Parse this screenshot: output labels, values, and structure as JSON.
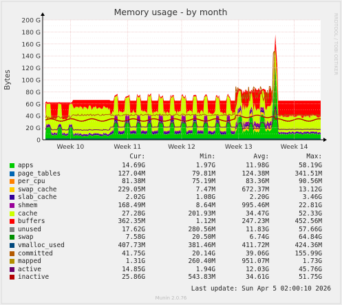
{
  "chart_data": {
    "type": "area",
    "title": "Memory usage - by month",
    "ylabel": "Bytes",
    "xlabel": "",
    "ylim": [
      0,
      200
    ],
    "y_unit": "G",
    "yticks": [
      "0",
      "20 G",
      "40 G",
      "60 G",
      "80 G",
      "100 G",
      "120 G",
      "140 G",
      "160 G",
      "180 G",
      "200 G"
    ],
    "xticks": [
      "Week 10",
      "Week 11",
      "Week 12",
      "Week 13",
      "Week 14"
    ],
    "grid": true,
    "watermark": "RRDTOOL / TOBI OETIKER",
    "legend_headers": [
      "Cur:",
      "Min:",
      "Avg:",
      "Max:"
    ],
    "series": [
      {
        "name": "apps",
        "color": "#00cc00",
        "cur": "14.69G",
        "min": "1.97G",
        "avg": "11.98G",
        "max": "58.19G"
      },
      {
        "name": "page_tables",
        "color": "#0066b3",
        "cur": "127.04M",
        "min": "79.81M",
        "avg": "124.38M",
        "max": "341.51M"
      },
      {
        "name": "per_cpu",
        "color": "#ff8000",
        "cur": "81.38M",
        "min": "75.19M",
        "avg": "83.36M",
        "max": "90.56M"
      },
      {
        "name": "swap_cache",
        "color": "#ffcc00",
        "cur": "229.05M",
        "min": "7.47M",
        "avg": "672.37M",
        "max": "13.12G"
      },
      {
        "name": "slab_cache",
        "color": "#330099",
        "cur": "2.02G",
        "min": "1.08G",
        "avg": "2.20G",
        "max": "3.46G"
      },
      {
        "name": "shmem",
        "color": "#990099",
        "cur": "168.49M",
        "min": "8.64M",
        "avg": "995.46M",
        "max": "22.81G"
      },
      {
        "name": "cache",
        "color": "#ccff00",
        "cur": "27.28G",
        "min": "201.93M",
        "avg": "34.47G",
        "max": "52.33G"
      },
      {
        "name": "buffers",
        "color": "#ff0000",
        "cur": "362.35M",
        "min": "1.12M",
        "avg": "247.23M",
        "max": "452.56M"
      },
      {
        "name": "unused",
        "color": "#808080",
        "cur": "17.62G",
        "min": "280.56M",
        "avg": "11.83G",
        "max": "57.66G"
      },
      {
        "name": "swap",
        "color": "#008f00",
        "cur": "7.58G",
        "min": "20.50M",
        "avg": "6.74G",
        "max": "64.84G"
      },
      {
        "name": "vmalloc_used",
        "color": "#00487d",
        "cur": "407.73M",
        "min": "381.46M",
        "avg": "411.72M",
        "max": "424.36M"
      },
      {
        "name": "committed",
        "color": "#b35a00",
        "cur": "41.75G",
        "min": "20.14G",
        "avg": "39.06G",
        "max": "155.99G"
      },
      {
        "name": "mapped",
        "color": "#b38f00",
        "cur": "1.31G",
        "min": "260.40M",
        "avg": "951.07M",
        "max": "1.73G"
      },
      {
        "name": "active",
        "color": "#6b006b",
        "cur": "14.85G",
        "min": "1.94G",
        "avg": "12.03G",
        "max": "45.76G"
      },
      {
        "name": "inactive",
        "color": "#8f6b00",
        "cur": "25.86G",
        "min": "543.83M",
        "avg": "34.61G",
        "max": "51.75G"
      }
    ],
    "legend_swatches": [
      "#00cc00",
      "#0066b3",
      "#ff8000",
      "#ffcc00",
      "#330099",
      "#990099",
      "#ccff00",
      "#ff0000",
      "#808080",
      "#008f00",
      "#00487d",
      "#b35a00",
      "#b38f00",
      "#6b006b",
      "#b50000"
    ],
    "last_update": "Last update: Sun Apr  5 02:00:10 2026",
    "footer": "Munin 2.0.76"
  }
}
